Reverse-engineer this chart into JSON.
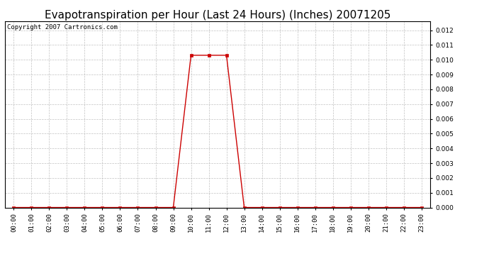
{
  "title": "Evapotranspiration per Hour (Last 24 Hours) (Inches) 20071205",
  "copyright_text": "Copyright 2007 Cartronics.com",
  "hours": [
    0,
    1,
    2,
    3,
    4,
    5,
    6,
    7,
    8,
    9,
    10,
    11,
    12,
    13,
    14,
    15,
    16,
    17,
    18,
    19,
    20,
    21,
    22,
    23
  ],
  "values": [
    0,
    0,
    0,
    0,
    0,
    0,
    0,
    0,
    0,
    0,
    0.0103,
    0.0103,
    0.0103,
    0,
    0,
    0,
    0,
    0,
    0,
    0,
    0,
    0,
    0,
    0
  ],
  "xlabels": [
    "00:00",
    "01:00",
    "02:00",
    "03:00",
    "04:00",
    "05:00",
    "06:00",
    "07:00",
    "08:00",
    "09:00",
    "10:00",
    "11:00",
    "12:00",
    "13:00",
    "14:00",
    "15:00",
    "16:00",
    "17:00",
    "18:00",
    "19:00",
    "20:00",
    "21:00",
    "22:00",
    "23:00"
  ],
  "ylim": [
    0,
    0.0126
  ],
  "yticks": [
    0.0,
    0.001,
    0.002,
    0.003,
    0.004,
    0.005,
    0.006,
    0.007,
    0.008,
    0.009,
    0.01,
    0.011,
    0.012
  ],
  "line_color": "#cc0000",
  "marker": "s",
  "marker_size": 2.5,
  "background_color": "#ffffff",
  "grid_color": "#bbbbbb",
  "title_fontsize": 11,
  "copyright_fontsize": 6.5,
  "tick_fontsize": 6.5
}
